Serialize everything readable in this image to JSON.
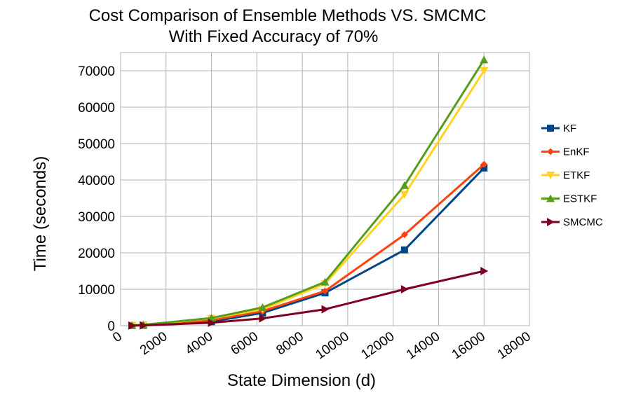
{
  "chart_data": {
    "type": "line",
    "title": [
      "Cost Comparison of Ensemble Methods VS. SMCMC",
      "With Fixed Accuracy of 70%"
    ],
    "xlabel": "State Dimension (d)",
    "ylabel": "Time (seconds)",
    "xlim": [
      0,
      18000
    ],
    "ylim": [
      0,
      75000
    ],
    "xticks": [
      0,
      2000,
      4000,
      6000,
      8000,
      10000,
      12000,
      14000,
      16000,
      18000
    ],
    "yticks": [
      0,
      10000,
      20000,
      30000,
      40000,
      50000,
      60000,
      70000
    ],
    "grid": true,
    "legend_position": "right",
    "series": [
      {
        "name": "KF",
        "color": "#004586",
        "marker": "square",
        "x": [
          500,
          1000,
          4000,
          6250,
          9000,
          12500,
          16000
        ],
        "y": [
          50,
          100,
          1100,
          3500,
          9000,
          20800,
          43300
        ]
      },
      {
        "name": "EnKF",
        "color": "#ff420e",
        "marker": "diamond",
        "x": [
          500,
          1000,
          4000,
          6250,
          9000,
          12500,
          16000
        ],
        "y": [
          60,
          150,
          1500,
          4000,
          9500,
          25000,
          44300
        ]
      },
      {
        "name": "ETKF",
        "color": "#ffd320",
        "marker": "triangle-down",
        "x": [
          500,
          1000,
          4000,
          6250,
          9000,
          12500,
          16000
        ],
        "y": [
          70,
          200,
          2000,
          4500,
          11500,
          36000,
          70000
        ]
      },
      {
        "name": "ESTKF",
        "color": "#579d1c",
        "marker": "triangle-up",
        "x": [
          500,
          1000,
          4000,
          6250,
          9000,
          12500,
          16000
        ],
        "y": [
          80,
          250,
          2100,
          5000,
          12000,
          38500,
          73000
        ]
      },
      {
        "name": "SMCMC",
        "color": "#7e0021",
        "marker": "triangle-right",
        "x": [
          500,
          1000,
          4000,
          6250,
          9000,
          12500,
          16000
        ],
        "y": [
          30,
          80,
          800,
          2000,
          4500,
          10000,
          15000
        ]
      }
    ]
  }
}
